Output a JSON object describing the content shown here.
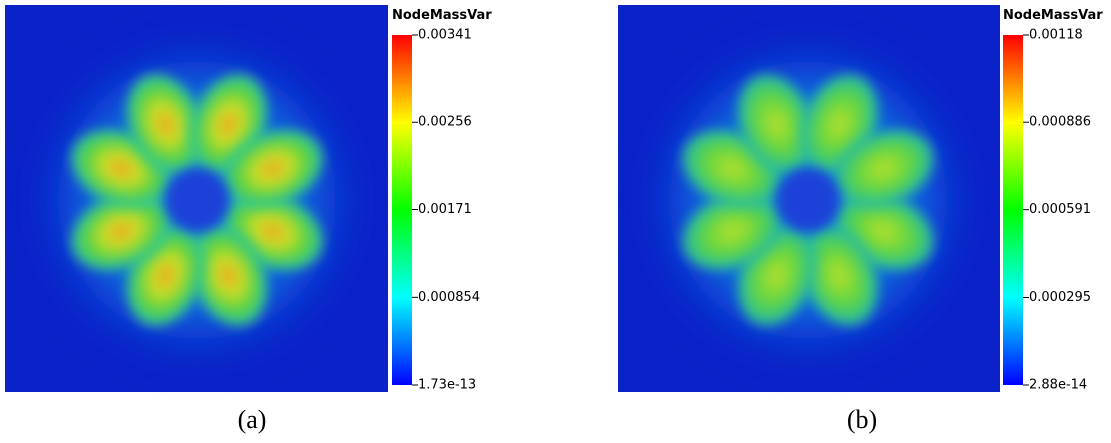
{
  "chart_data": [
    {
      "type": "heatmap",
      "title": "NodeMassVar",
      "label": "(a)",
      "colors": [
        "#0000ff",
        "#00ffff",
        "#00ff00",
        "#ffff00",
        "#ff0000"
      ],
      "ylim": [
        1.73e-13,
        0.00341
      ],
      "yticks": [
        1.73e-13,
        0.000854,
        0.00171,
        0.00256,
        0.00341
      ]
    },
    {
      "type": "heatmap",
      "title": "NodeMassVar",
      "label": "(b)",
      "colors": [
        "#0000ff",
        "#00ffff",
        "#00ff00",
        "#ffff00",
        "#ff0000"
      ],
      "ylim": [
        2.88e-14,
        0.00118
      ],
      "yticks": [
        2.88e-14,
        0.000295,
        0.000591,
        0.000886,
        0.00118
      ]
    }
  ]
}
